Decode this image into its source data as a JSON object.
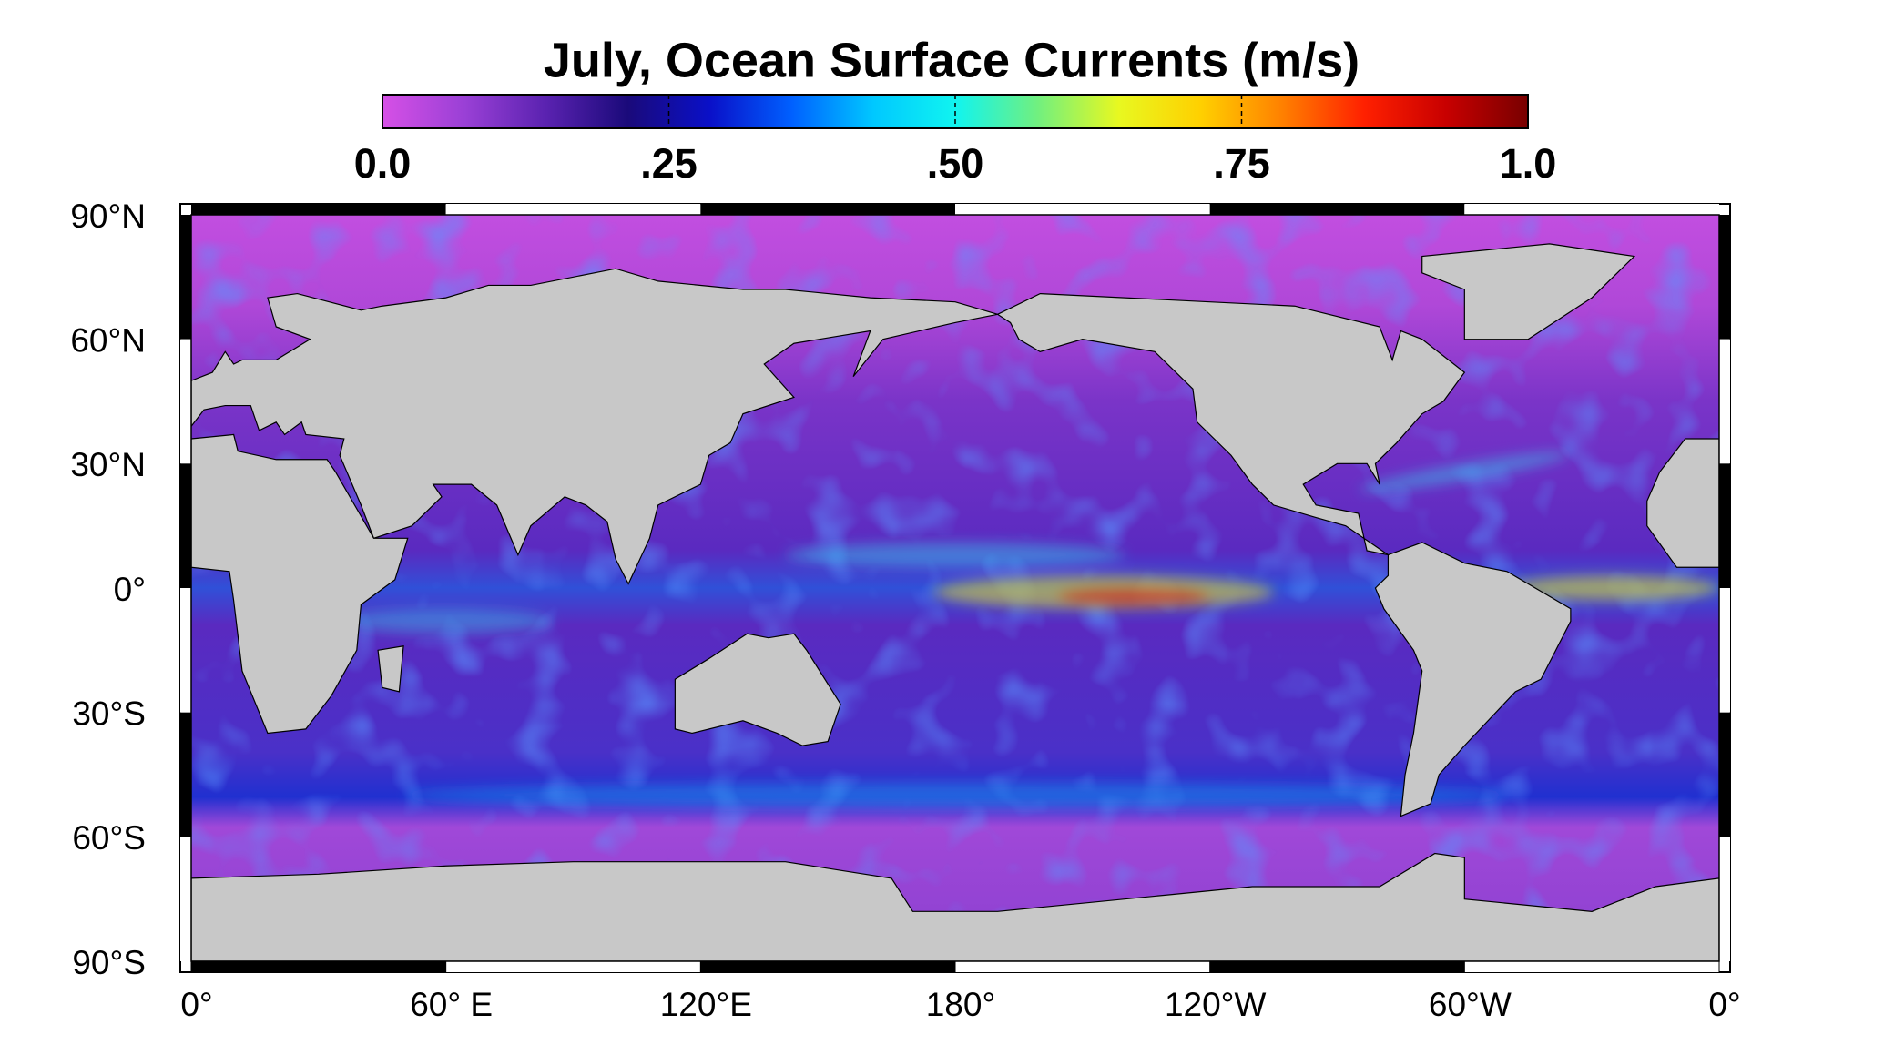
{
  "title": "July, Ocean Surface Currents (m/s)",
  "colorbar": {
    "range": [
      0,
      1
    ],
    "ticks": [
      {
        "value": 0,
        "label": "0.0"
      },
      {
        "value": 0.25,
        "label": ".25"
      },
      {
        "value": 0.5,
        "label": ".50"
      },
      {
        "value": 0.75,
        "label": ".75"
      },
      {
        "value": 1,
        "label": "1.0"
      }
    ],
    "colors": [
      "#d650e6",
      "#9a40d6",
      "#5a22b0",
      "#1a0a7a",
      "#0a10c8",
      "#0060ff",
      "#00c8ff",
      "#10f4f0",
      "#70f080",
      "#e8f820",
      "#ffd000",
      "#ff8000",
      "#ff2000",
      "#c80000",
      "#780000"
    ]
  },
  "map": {
    "lon_range": [
      0,
      360
    ],
    "lat_range": [
      90,
      -90
    ],
    "lon_ticks": [
      {
        "value": 0,
        "label": "0°"
      },
      {
        "value": 60,
        "label": "60° E"
      },
      {
        "value": 120,
        "label": "120°E"
      },
      {
        "value": 180,
        "label": "180°"
      },
      {
        "value": 240,
        "label": "120°W"
      },
      {
        "value": 300,
        "label": "60°W"
      },
      {
        "value": 360,
        "label": "0°"
      }
    ],
    "lat_ticks": [
      {
        "value": 90,
        "label": "90°N"
      },
      {
        "value": 60,
        "label": "60°N"
      },
      {
        "value": 30,
        "label": "30°N"
      },
      {
        "value": 0,
        "label": "0°"
      },
      {
        "value": -30,
        "label": "30°S"
      },
      {
        "value": -60,
        "label": "60°S"
      },
      {
        "value": -90,
        "label": "90°S"
      }
    ]
  }
}
